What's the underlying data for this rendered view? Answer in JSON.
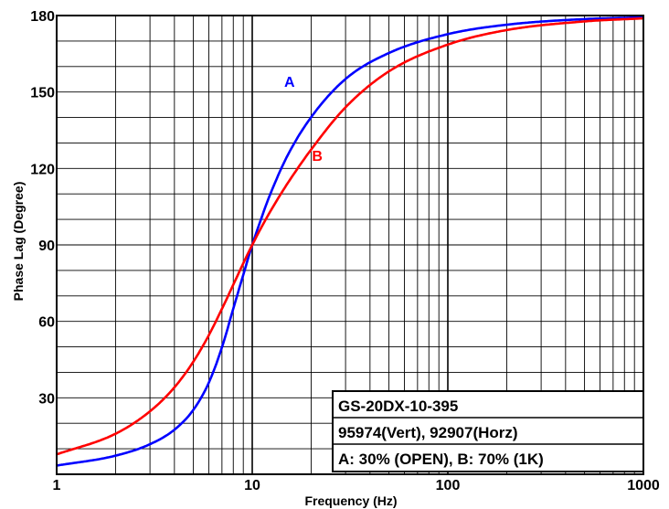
{
  "chart_data": {
    "type": "line",
    "xscale": "log",
    "xlabel": "Frequency (Hz)",
    "ylabel": "Phase Lag (Degree)",
    "xlim": [
      1,
      1000
    ],
    "ylim": [
      0,
      180
    ],
    "x_ticks": [
      1,
      10,
      100,
      1000
    ],
    "x_tick_labels": [
      "1",
      "10",
      "100",
      "1000"
    ],
    "y_ticks": [
      30,
      60,
      90,
      120,
      150,
      180
    ],
    "y_tick_labels": [
      "30",
      "60",
      "90",
      "120",
      "150",
      "180"
    ],
    "grid": true,
    "series": [
      {
        "name": "A",
        "color": "#0000ff",
        "x": [
          1,
          2,
          3,
          4,
          5,
          6,
          7,
          8,
          9,
          10,
          11,
          12,
          15,
          20,
          30,
          50,
          100,
          200,
          500,
          1000
        ],
        "y": [
          3.4,
          7.3,
          11.8,
          17.5,
          25.3,
          36.0,
          49.8,
          65.0,
          78.3,
          90.0,
          99.3,
          107.4,
          124.4,
          140.1,
          155.1,
          165.3,
          172.7,
          176.4,
          178.6,
          179.3
        ]
      },
      {
        "name": "B",
        "color": "#ff0000",
        "x": [
          1,
          2,
          3,
          4,
          5,
          6,
          7,
          8,
          9,
          10,
          11,
          12,
          15,
          20,
          30,
          50,
          100,
          200,
          500,
          1000
        ],
        "y": [
          7.8,
          15.9,
          24.7,
          34.1,
          44.2,
          54.6,
          64.9,
          74.4,
          82.8,
          90.0,
          96.1,
          101.4,
          113.6,
          127.4,
          144.0,
          158.1,
          168.6,
          174.3,
          177.7,
          178.9
        ]
      }
    ],
    "annotations": [
      {
        "text": "A",
        "color": "#0000ff",
        "x": 15.5,
        "y": 152
      },
      {
        "text": "B",
        "color": "#ff0000",
        "x": 21.5,
        "y": 123
      }
    ],
    "legend": {
      "placement": "bottom-right",
      "lines": [
        "GS-20DX-10-395",
        "95974(Vert), 92907(Horz)",
        "A: 30% (OPEN),  B: 70% (1K)"
      ]
    }
  }
}
